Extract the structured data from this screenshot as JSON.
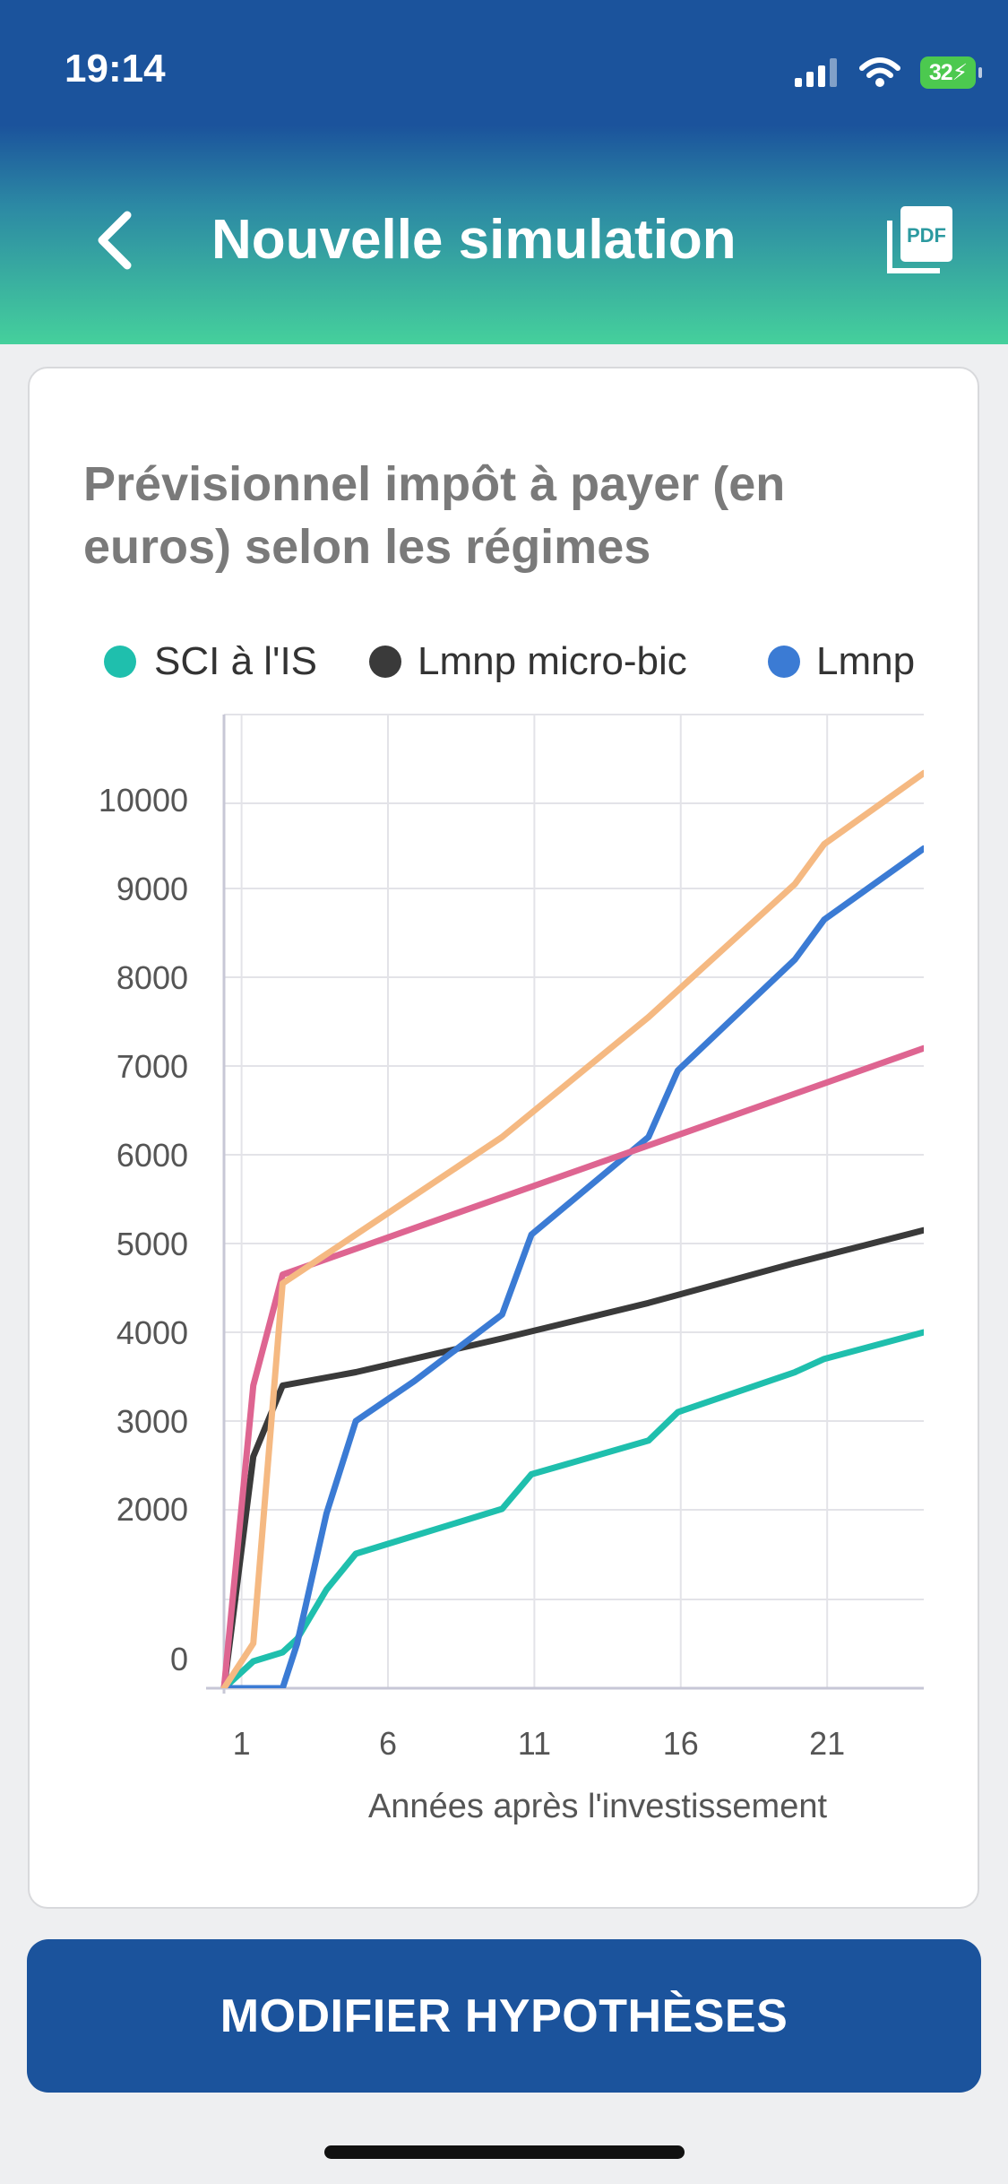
{
  "status": {
    "time": "19:14",
    "battery": "32"
  },
  "header": {
    "title": "Nouvelle simulation",
    "pdf_label": "PDF"
  },
  "chart_data": {
    "type": "line",
    "title": "Prévisionnel impôt à payer (en euros) selon les régimes",
    "xlabel": "Années après l'investissement",
    "ylabel": "",
    "x_ticks": [
      1,
      6,
      11,
      16,
      21
    ],
    "y_ticks": [
      0,
      2000,
      3000,
      4000,
      5000,
      6000,
      7000,
      8000,
      9000,
      10000
    ],
    "legend": [
      "SCI à l'IS",
      "Lmnp micro-bic",
      "Lmnp"
    ],
    "series": [
      {
        "name": "SCI à l'IS",
        "color": "#1fbfad",
        "x": [
          0.5,
          1.5,
          2.5,
          3,
          4,
          5,
          7,
          10,
          11,
          15,
          16,
          20,
          21,
          24.4
        ],
        "y": [
          0,
          300,
          400,
          550,
          1100,
          1500,
          1700,
          2000,
          2400,
          2780,
          3100,
          3550,
          3700,
          4000
        ]
      },
      {
        "name": "Lmnp micro-bic",
        "color": "#3a3a3a",
        "x": [
          0.5,
          1.5,
          2.5,
          5,
          10,
          15,
          20,
          24.4
        ],
        "y": [
          0,
          2600,
          3400,
          3550,
          3930,
          4330,
          4780,
          5150
        ]
      },
      {
        "name": "Lmnp",
        "color": "#3b7bd4",
        "x": [
          0.5,
          2.5,
          3,
          4,
          5,
          7,
          10,
          11,
          15,
          16,
          20,
          21,
          24.4
        ],
        "y": [
          0,
          0,
          500,
          1950,
          3000,
          3450,
          4200,
          5100,
          6200,
          6950,
          8200,
          8650,
          9450
        ]
      },
      {
        "name": "",
        "color": "#de6591",
        "x": [
          0.5,
          1.5,
          2.5,
          24.4
        ],
        "y": [
          0,
          3400,
          4650,
          7200
        ]
      },
      {
        "name": "",
        "color": "#f5b982",
        "x": [
          0.5,
          1.5,
          2.5,
          5,
          10,
          15,
          20,
          21,
          24.4
        ],
        "y": [
          0,
          500,
          4550,
          5100,
          6200,
          7550,
          9050,
          9500,
          10300
        ]
      }
    ]
  },
  "actions": {
    "modify_label": "MODIFIER HYPOTHÈSES"
  }
}
